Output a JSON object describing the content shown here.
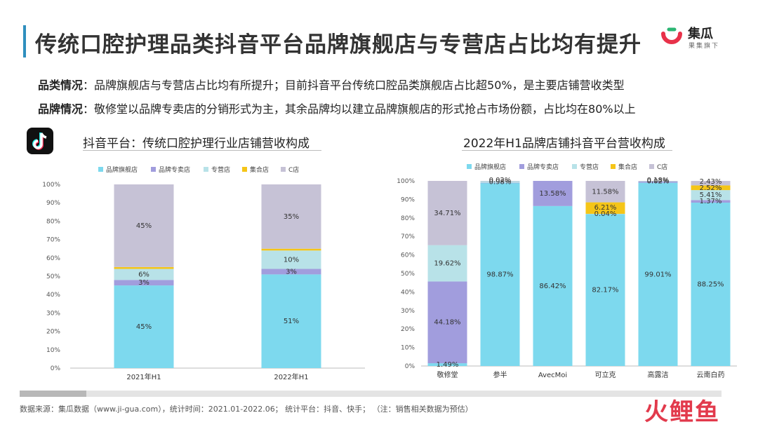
{
  "title": "传统口腔护理品类抖音平台品牌旗舰店与专营店占比均有提升",
  "logo": {
    "name": "集瓜",
    "sub": "果集旗下"
  },
  "summary": [
    {
      "label": "品类情况",
      "sep": "：",
      "text": "品牌旗舰店与专营店占比均有所提升；目前抖音平台传统口腔品类旗舰店占比超50%，是主要店铺营收类型"
    },
    {
      "label": "品牌情况",
      "sep": "：",
      "text": "敬修堂以品牌专卖店的分销形式为主，其余品牌均以建立品牌旗舰店的形式抢占市场份额，占比均在80%以上"
    }
  ],
  "colors": {
    "flagship": "#7dd9ee",
    "exclusive": "#a19ddd",
    "franchise": "#b8e2e8",
    "collection": "#f5c518",
    "cstore": "#c6c2d6",
    "accent": "#2f8fbe"
  },
  "chart_data": [
    {
      "type": "bar",
      "stacked": true,
      "title": "抖音平台：传统口腔护理行业店铺营收构成",
      "categories": [
        "2021年H1",
        "2022年H1"
      ],
      "series": [
        {
          "name": "品牌旗舰店",
          "values": [
            45,
            51
          ],
          "labels": [
            "45%",
            "51%"
          ]
        },
        {
          "name": "品牌专卖店",
          "values": [
            3,
            3
          ],
          "labels": [
            "3%",
            "3%"
          ]
        },
        {
          "name": "专营店",
          "values": [
            6,
            10
          ],
          "labels": [
            "6%",
            "10%"
          ]
        },
        {
          "name": "集合店",
          "values": [
            1,
            1
          ],
          "labels": [
            "",
            ""
          ]
        },
        {
          "name": "C店",
          "values": [
            45,
            35
          ],
          "labels": [
            "45%",
            "35%"
          ]
        }
      ],
      "y_ticks": [
        "0%",
        "10%",
        "20%",
        "30%",
        "40%",
        "50%",
        "60%",
        "70%",
        "80%",
        "90%",
        "100%"
      ],
      "ylim": [
        0,
        100
      ],
      "legend": "top"
    },
    {
      "type": "bar",
      "stacked": true,
      "title": "2022年H1品牌店铺抖音平台营收构成",
      "categories": [
        "敬修堂",
        "参半",
        "AvecMoi",
        "可立克",
        "高露洁",
        "云南白药"
      ],
      "series": [
        {
          "name": "品牌旗舰店",
          "values": [
            1.49,
            98.87,
            86.42,
            82.17,
            99.01,
            88.25
          ],
          "labels": [
            "1.49%",
            "98.87%",
            "86.42%",
            "82.17%",
            "99.01%",
            "88.25%"
          ]
        },
        {
          "name": "品牌专卖店",
          "values": [
            44.18,
            0.13,
            13.58,
            0,
            0.79,
            1.37
          ],
          "labels": [
            "44.18%",
            "",
            "13.58%",
            "",
            "",
            "1.37%"
          ]
        },
        {
          "name": "专营店",
          "values": [
            19.62,
            0.98,
            0,
            0.04,
            0.02,
            5.41
          ],
          "labels": [
            "19.62%",
            "0.98%",
            "",
            "0.04%",
            "0.02%",
            "5.41%"
          ]
        },
        {
          "name": "集合店",
          "values": [
            0,
            0,
            0,
            6.21,
            0,
            2.52
          ],
          "labels": [
            "",
            "",
            "",
            "6.21%",
            "",
            "2.52%"
          ]
        },
        {
          "name": "C店",
          "values": [
            34.71,
            0.02,
            0,
            11.58,
            0.18,
            2.43
          ],
          "labels": [
            "34.71%",
            "0.02%",
            "",
            "11.58%",
            "0.18%",
            "2.43%"
          ]
        }
      ],
      "y_ticks": [
        "0%",
        "10%",
        "20%",
        "30%",
        "40%",
        "50%",
        "60%",
        "70%",
        "80%",
        "90%",
        "100%"
      ],
      "ylim": [
        0,
        100
      ],
      "legend": "top"
    }
  ],
  "footer": "数据来源：集瓜数据（www.ji-gua.com），统计时间：2021.01-2022.06；    统计平台：抖音、快手；      （注：销售相关数据为预估）",
  "brand2": "火鲤鱼",
  "icons": {
    "logo": "jigua-logo-icon",
    "tiktok": "tiktok-icon"
  }
}
